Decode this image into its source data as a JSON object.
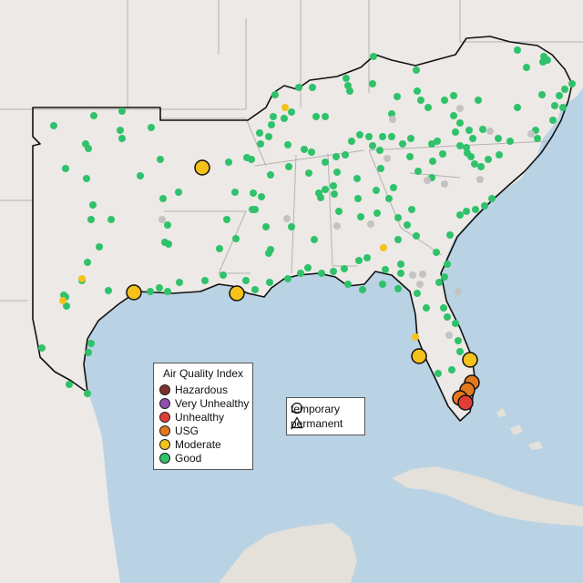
{
  "colors": {
    "ocean": "#b9d3e4",
    "land": "#ece9e6",
    "land_south": "#ddd9d3",
    "border_state": "#b5b3b0",
    "outline": "#111111",
    "hazardous": "#7e2f2f",
    "very_unhealthy": "#8f4fb3",
    "unhealthy": "#e23e37",
    "usg": "#e5781d",
    "moderate": "#f4c21b",
    "good": "#2fc26b",
    "no_data": "#c3c3c3"
  },
  "legend": {
    "title": "Air Quality Index",
    "items": [
      {
        "label": "Hazardous",
        "color": "#7e2f2f"
      },
      {
        "label": "Very Unhealthy",
        "color": "#8f4fb3"
      },
      {
        "label": "Unhealthy",
        "color": "#e23e37"
      },
      {
        "label": "USG",
        "color": "#e5781d"
      },
      {
        "label": "Moderate",
        "color": "#f4c21b"
      },
      {
        "label": "Good",
        "color": "#2fc26b"
      }
    ],
    "types": [
      {
        "label": "temporary",
        "shape": "circle"
      },
      {
        "label": "permanent",
        "shape": "triangle"
      }
    ]
  }
}
